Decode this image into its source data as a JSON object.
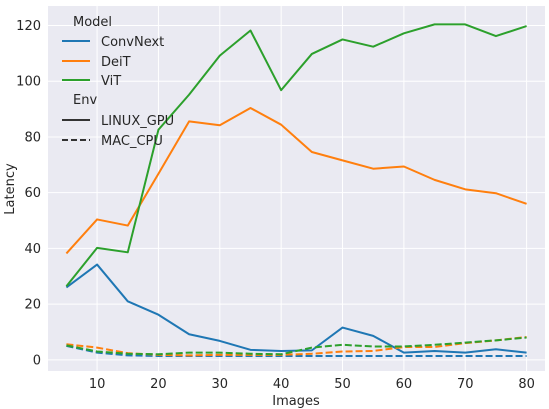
{
  "chart_data": {
    "type": "line",
    "xlabel": "Images",
    "ylabel": "Latency",
    "xlim": [
      2,
      83
    ],
    "ylim": [
      -4,
      127
    ],
    "x_ticks": [
      10,
      20,
      30,
      40,
      50,
      60,
      70,
      80
    ],
    "y_ticks": [
      0,
      20,
      40,
      60,
      80,
      100,
      120
    ],
    "grid": true,
    "legend_position": "top-left",
    "legend": {
      "hue_title": "Model",
      "style_title": "Env",
      "models": [
        {
          "name": "ConvNext",
          "color": "#1f77b4"
        },
        {
          "name": "DeiT",
          "color": "#ff7f0e"
        },
        {
          "name": "ViT",
          "color": "#2ca02c"
        }
      ],
      "envs": [
        {
          "name": "LINUX_GPU",
          "dash": "solid"
        },
        {
          "name": "MAC_CPU",
          "dash": "dashed"
        }
      ]
    },
    "x": [
      5,
      10,
      15,
      20,
      25,
      30,
      35,
      40,
      45,
      50,
      55,
      60,
      65,
      70,
      75,
      80
    ],
    "series": [
      {
        "model": "ConvNext",
        "env": "LINUX_GPU",
        "values": [
          26,
          34.2,
          21,
          16.2,
          9.2,
          6.8,
          3.6,
          3.2,
          3.4,
          11.6,
          8.6,
          2.6,
          3.2,
          2.6,
          3.8,
          2.6
        ]
      },
      {
        "model": "DeiT",
        "env": "LINUX_GPU",
        "values": [
          38.2,
          50.4,
          48.2,
          66.8,
          85.6,
          84.2,
          90.4,
          84.4,
          74.6,
          71.6,
          68.6,
          69.4,
          64.6,
          61.2,
          59.8,
          56
        ]
      },
      {
        "model": "ViT",
        "env": "LINUX_GPU",
        "values": [
          26.4,
          40.2,
          38.6,
          82.6,
          95.2,
          109.2,
          118.2,
          96.8,
          109.8,
          115,
          112.4,
          117.2,
          120.4,
          120.4,
          116.2,
          119.8
        ]
      },
      {
        "model": "ConvNext",
        "env": "MAC_CPU",
        "values": [
          5,
          2.6,
          1.6,
          1.4,
          1.4,
          1.4,
          1.4,
          1.4,
          1.4,
          1.4,
          1.4,
          1.4,
          1.4,
          1.4,
          1.4,
          1.4
        ]
      },
      {
        "model": "DeiT",
        "env": "MAC_CPU",
        "values": [
          5.6,
          4.4,
          2.4,
          1.8,
          1.6,
          1.8,
          1.8,
          1.8,
          2.2,
          3,
          3.2,
          4.6,
          4.6,
          6,
          7,
          8.2
        ]
      },
      {
        "model": "ViT",
        "env": "MAC_CPU",
        "values": [
          5.2,
          3,
          2.2,
          2,
          2.6,
          2.6,
          2.2,
          2,
          4.4,
          5.4,
          4.8,
          4.8,
          5.4,
          6.2,
          7,
          8
        ]
      }
    ]
  }
}
